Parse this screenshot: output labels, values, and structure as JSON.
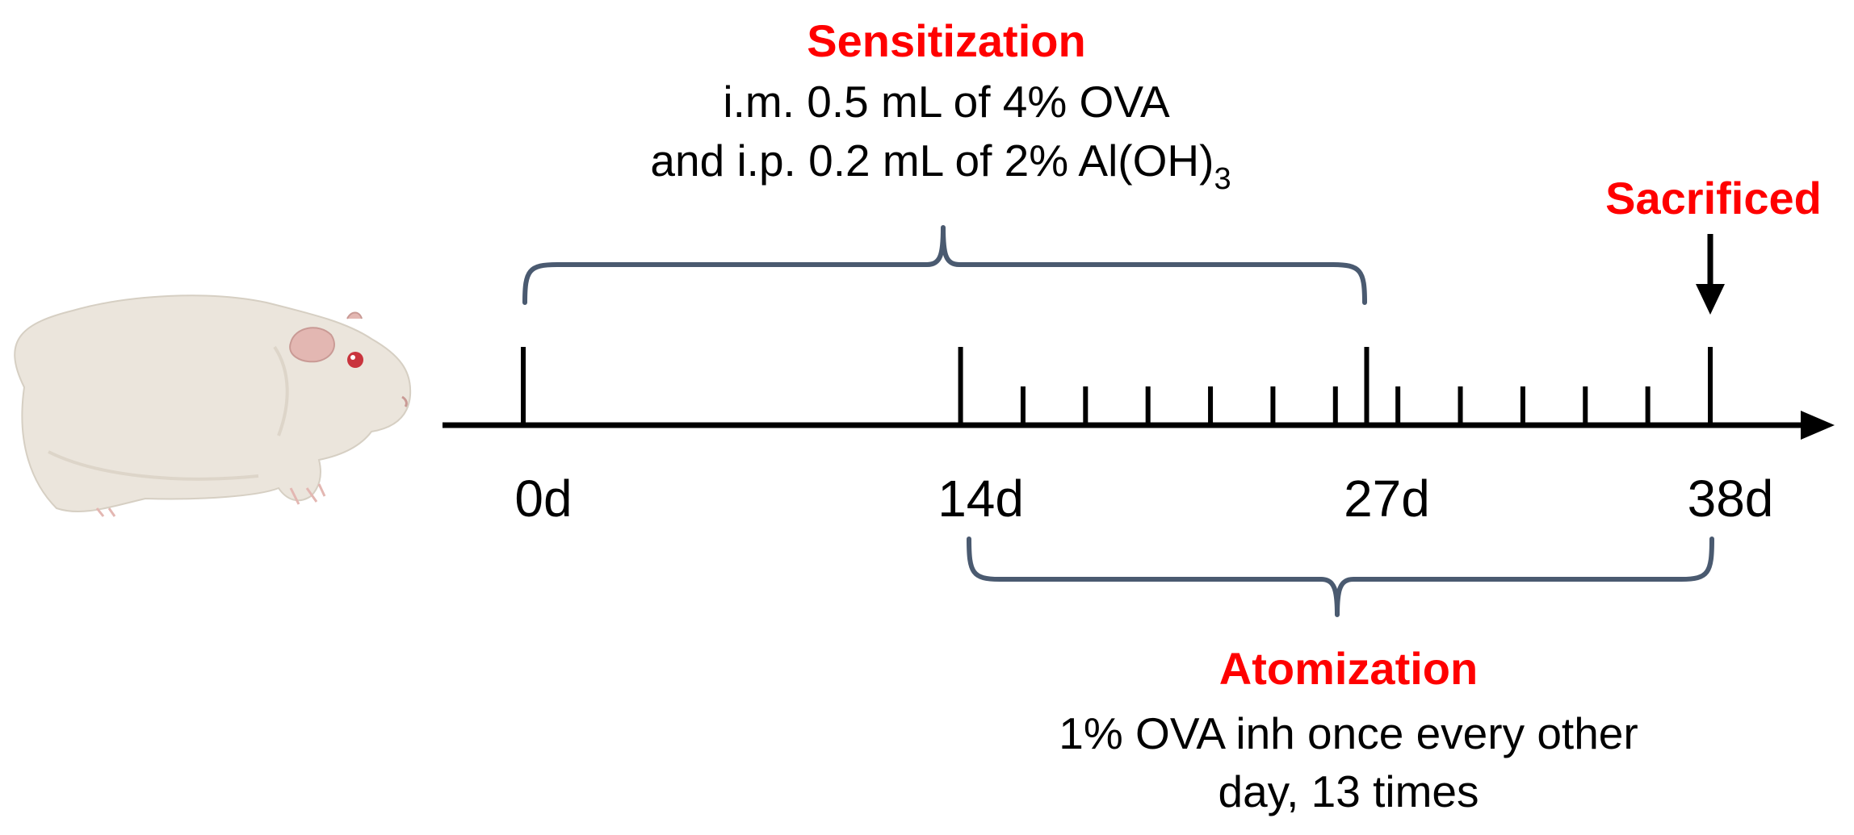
{
  "sensitization": {
    "title": "Sensitization",
    "line1": "i.m. 0.5 mL of 4% OVA",
    "line2_main": "and i.p. 0.2 mL of 2% Al(OH)",
    "line2_sub": "3"
  },
  "sacrificed": {
    "label": "Sacrificed"
  },
  "timeline": {
    "day_labels": [
      "0d",
      "14d",
      "27d",
      "38d"
    ],
    "major_days": [
      0,
      14,
      27,
      38
    ],
    "minor_days": [
      16,
      18,
      20,
      22,
      24,
      26,
      28,
      30,
      32,
      34,
      36
    ],
    "sacrifice_day": 38
  },
  "atomization": {
    "title": "Atomization",
    "line1": "1% OVA inh once every other",
    "line2": "day, 13 times"
  },
  "colors": {
    "accent": "#ff0000",
    "brace": "#4a5a70",
    "axis": "#000000"
  },
  "icons": {
    "animal": "guinea-pig-icon",
    "arrow": "down-arrow-icon"
  }
}
